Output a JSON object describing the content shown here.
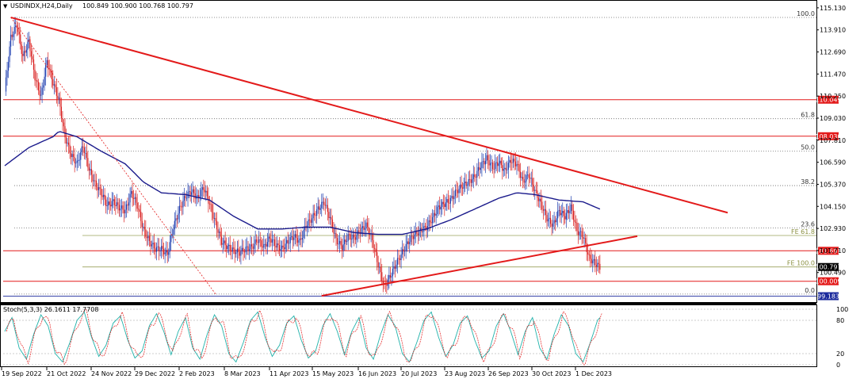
{
  "header": {
    "symbol_text": "USDINDX,H24,Daily",
    "ohlc_text": "100.849 100.900 100.768 100.797"
  },
  "stoch": {
    "label": "Stoch(5,3,3) 26.1611 17.7708",
    "levels": [
      "100",
      "80",
      "20",
      "0"
    ]
  },
  "price_axis": {
    "ticks": [
      "115.130",
      "113.910",
      "112.690",
      "111.470",
      "110.250",
      "109.030",
      "107.810",
      "106.590",
      "105.370",
      "104.150",
      "102.930",
      "101.710",
      "100.490"
    ],
    "current_price": "100.797",
    "colors": {
      "bull": "#1f3fb0",
      "bear": "#d81e1e",
      "ma": "#1b1b8c",
      "trend": "#e31a1a",
      "hline": "#e31a1a",
      "fib": "#6b6b6b",
      "fe": "#9aa05a"
    }
  },
  "levels": {
    "hlines": [
      {
        "value": 110.049,
        "label": "110.049"
      },
      {
        "value": 108.03,
        "label": "108.030"
      },
      {
        "value": 101.693,
        "label": "101.693"
      },
      {
        "value": 100.009,
        "label": "100.009"
      },
      {
        "value": 99.183,
        "label": "99.183"
      }
    ],
    "fib": [
      {
        "value": 114.6,
        "label": "100.0"
      },
      {
        "value": 109.0,
        "label": "61.8"
      },
      {
        "value": 107.2,
        "label": "50.0"
      },
      {
        "value": 105.3,
        "label": "38.2"
      },
      {
        "value": 102.95,
        "label": "23.6"
      },
      {
        "value": 99.3,
        "label": "0.0"
      }
    ],
    "fe": [
      {
        "value": 102.54,
        "label": "FE 61.8"
      },
      {
        "value": 100.8,
        "label": "FE 100.0"
      }
    ]
  },
  "date_axis": {
    "labels": [
      "19 Sep 2022",
      "21 Oct 2022",
      "24 Nov 2022",
      "29 Dec 2022",
      "2 Feb 2023",
      "8 Mar 2023",
      "11 Apr 2023",
      "15 May 2023",
      "16 Jun 2023",
      "20 Jul 2023",
      "23 Aug 2023",
      "26 Sep 2023",
      "30 Oct 2023",
      "1 Dec 2023"
    ]
  },
  "chart_data": {
    "type": "candlestick",
    "title": "USDINDX,H24,Daily",
    "ylim": [
      98.9,
      115.3
    ],
    "price_keypoints": [
      [
        0,
        110.5
      ],
      [
        5,
        113.5
      ],
      [
        10,
        114.2
      ],
      [
        15,
        112.4
      ],
      [
        20,
        113.3
      ],
      [
        25,
        111.3
      ],
      [
        30,
        110.2
      ],
      [
        35,
        112.2
      ],
      [
        40,
        111.0
      ],
      [
        45,
        110.0
      ],
      [
        50,
        108.0
      ],
      [
        55,
        107.0
      ],
      [
        60,
        106.5
      ],
      [
        65,
        107.5
      ],
      [
        70,
        106.2
      ],
      [
        75,
        105.4
      ],
      [
        80,
        104.9
      ],
      [
        85,
        104.2
      ],
      [
        90,
        104.4
      ],
      [
        95,
        104.1
      ],
      [
        100,
        103.9
      ],
      [
        105,
        104.9
      ],
      [
        110,
        104.2
      ],
      [
        115,
        102.9
      ],
      [
        120,
        102.2
      ],
      [
        125,
        101.8
      ],
      [
        130,
        101.8
      ],
      [
        135,
        101.5
      ],
      [
        140,
        103.0
      ],
      [
        145,
        104.0
      ],
      [
        150,
        104.7
      ],
      [
        155,
        105.0
      ],
      [
        160,
        104.6
      ],
      [
        165,
        105.2
      ],
      [
        170,
        104.3
      ],
      [
        175,
        103.2
      ],
      [
        180,
        102.2
      ],
      [
        185,
        101.9
      ],
      [
        190,
        101.7
      ],
      [
        195,
        101.6
      ],
      [
        200,
        101.8
      ],
      [
        205,
        101.9
      ],
      [
        210,
        102.3
      ],
      [
        215,
        101.9
      ],
      [
        220,
        102.4
      ],
      [
        225,
        102.0
      ],
      [
        230,
        101.8
      ],
      [
        235,
        102.2
      ],
      [
        240,
        102.5
      ],
      [
        245,
        102.2
      ],
      [
        250,
        103.1
      ],
      [
        255,
        103.5
      ],
      [
        260,
        104.0
      ],
      [
        265,
        104.4
      ],
      [
        270,
        103.5
      ],
      [
        275,
        102.3
      ],
      [
        280,
        101.9
      ],
      [
        285,
        102.5
      ],
      [
        290,
        102.4
      ],
      [
        295,
        102.8
      ],
      [
        300,
        103.1
      ],
      [
        305,
        102.3
      ],
      [
        310,
        100.9
      ],
      [
        315,
        99.7
      ],
      [
        320,
        100.3
      ],
      [
        325,
        101.0
      ],
      [
        330,
        101.6
      ],
      [
        335,
        102.2
      ],
      [
        340,
        102.6
      ],
      [
        345,
        102.8
      ],
      [
        350,
        103.0
      ],
      [
        355,
        103.5
      ],
      [
        360,
        104.1
      ],
      [
        365,
        104.3
      ],
      [
        370,
        104.5
      ],
      [
        375,
        105.0
      ],
      [
        380,
        105.3
      ],
      [
        385,
        105.5
      ],
      [
        390,
        105.8
      ],
      [
        395,
        106.4
      ],
      [
        400,
        106.8
      ],
      [
        405,
        106.3
      ],
      [
        410,
        106.6
      ],
      [
        415,
        106.1
      ],
      [
        420,
        106.7
      ],
      [
        425,
        106.5
      ],
      [
        430,
        105.5
      ],
      [
        435,
        105.9
      ],
      [
        440,
        105.0
      ],
      [
        445,
        104.3
      ],
      [
        450,
        103.5
      ],
      [
        455,
        103.1
      ],
      [
        460,
        103.9
      ],
      [
        465,
        103.6
      ],
      [
        470,
        104.1
      ],
      [
        475,
        102.8
      ],
      [
        480,
        102.5
      ],
      [
        485,
        101.3
      ],
      [
        490,
        101.0
      ],
      [
        494,
        100.8
      ]
    ],
    "moving_average": [
      [
        0,
        106.4
      ],
      [
        20,
        107.4
      ],
      [
        40,
        108.0
      ],
      [
        45,
        108.3
      ],
      [
        60,
        108.0
      ],
      [
        80,
        107.2
      ],
      [
        100,
        106.5
      ],
      [
        115,
        105.5
      ],
      [
        130,
        104.9
      ],
      [
        150,
        104.8
      ],
      [
        170,
        104.5
      ],
      [
        190,
        103.6
      ],
      [
        210,
        102.9
      ],
      [
        230,
        102.9
      ],
      [
        250,
        103.0
      ],
      [
        270,
        103.0
      ],
      [
        290,
        102.7
      ],
      [
        310,
        102.6
      ],
      [
        330,
        102.6
      ],
      [
        350,
        102.9
      ],
      [
        370,
        103.4
      ],
      [
        390,
        104.0
      ],
      [
        410,
        104.6
      ],
      [
        425,
        104.9
      ],
      [
        440,
        104.8
      ],
      [
        460,
        104.5
      ],
      [
        480,
        104.4
      ],
      [
        494,
        104.0
      ]
    ],
    "trendlines": [
      {
        "from": [
          5,
          114.6
        ],
        "to": [
          600,
          103.8
        ]
      },
      {
        "from": [
          263,
          99.2
        ],
        "to": [
          525,
          102.5
        ]
      }
    ],
    "dashed_line": {
      "from": [
        5,
        114.6
      ],
      "to": [
        175,
        99.3
      ]
    },
    "stochastic_pattern": [
      60,
      85,
      30,
      10,
      55,
      90,
      70,
      20,
      5,
      40,
      80,
      95,
      50,
      15,
      35,
      75,
      88,
      45,
      12,
      25,
      70,
      92,
      60,
      18
    ],
    "last_values": {
      "k": 26.1611,
      "d": 17.7708
    }
  }
}
